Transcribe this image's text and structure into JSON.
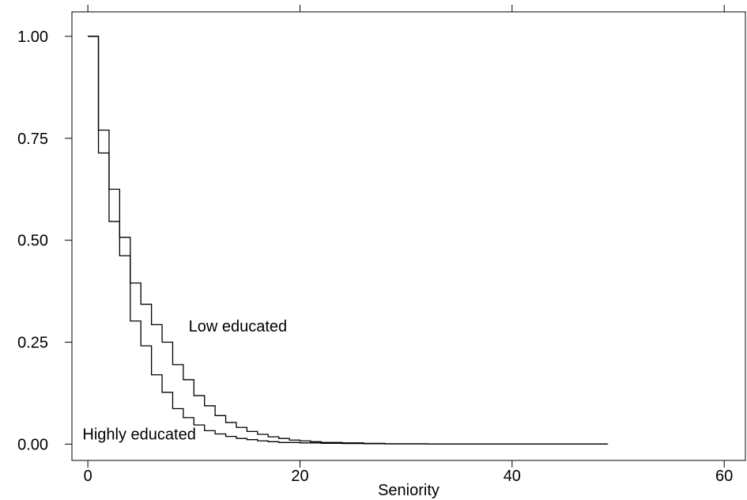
{
  "chart_data": {
    "type": "line",
    "step": true,
    "xlabel": "Seniority",
    "ylabel": "",
    "xlim": [
      -1.5,
      62
    ],
    "ylim": [
      -0.04,
      1.06
    ],
    "xticks": [
      0,
      20,
      40,
      60
    ],
    "xtick_labels": [
      "0",
      "20",
      "40",
      "60"
    ],
    "yticks": [
      0,
      0.25,
      0.5,
      0.75,
      1.0
    ],
    "ytick_labels": [
      "0.00",
      "0.25",
      "0.50",
      "0.75",
      "1.00"
    ],
    "grid": false,
    "legend": "none",
    "series": [
      {
        "name": "Low educated",
        "x": [
          0,
          1,
          2,
          3,
          4,
          5,
          6,
          7,
          8,
          9,
          10,
          11,
          12,
          13,
          14,
          15,
          16,
          17,
          18,
          19,
          20,
          21,
          22,
          24,
          26,
          28,
          32,
          49
        ],
        "y": [
          1.0,
          0.77,
          0.625,
          0.507,
          0.395,
          0.343,
          0.293,
          0.25,
          0.195,
          0.158,
          0.119,
          0.094,
          0.07,
          0.053,
          0.041,
          0.031,
          0.024,
          0.018,
          0.014,
          0.01,
          0.008,
          0.006,
          0.004,
          0.003,
          0.002,
          0.001,
          0.0005,
          0.0
        ],
        "label": "Low educated"
      },
      {
        "name": "Highly educated",
        "x": [
          0,
          1,
          2,
          3,
          4,
          5,
          6,
          7,
          8,
          9,
          10,
          11,
          12,
          13,
          14,
          15,
          16,
          17,
          18,
          20,
          22,
          24,
          26,
          28,
          32,
          49
        ],
        "y": [
          1.0,
          0.714,
          0.546,
          0.462,
          0.302,
          0.241,
          0.17,
          0.127,
          0.087,
          0.065,
          0.047,
          0.033,
          0.025,
          0.019,
          0.014,
          0.011,
          0.008,
          0.006,
          0.004,
          0.003,
          0.002,
          0.0015,
          0.001,
          0.0005,
          0.0003,
          0.0
        ],
        "label": "Highly educated"
      }
    ],
    "annotations": [
      {
        "text": "Low educated",
        "x": 9.5,
        "y": 0.265
      },
      {
        "text": "Highly educated",
        "x": -0.5,
        "y": 0.0
      }
    ]
  }
}
